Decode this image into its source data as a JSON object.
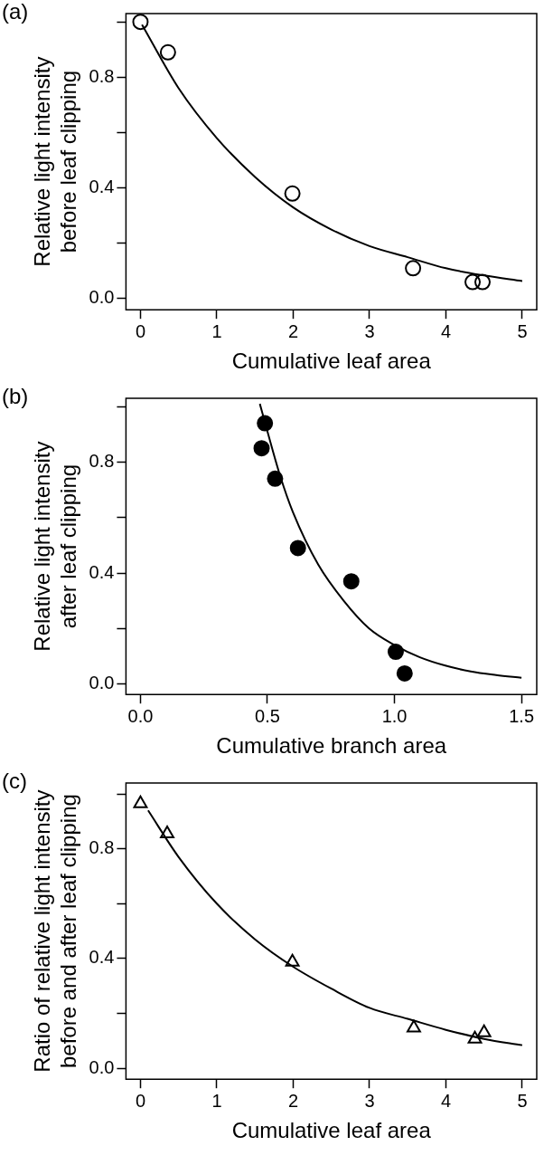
{
  "chart_data": [
    {
      "type": "scatter",
      "annotations": [
        "(a)"
      ],
      "xlabel": "Cumulative leaf area",
      "ylabel": "Relative light intensity\nbefore leaf clipping",
      "xlim": [
        -0.19,
        5.19
      ],
      "ylim": [
        -0.04,
        1.03
      ],
      "xticks": [
        0,
        1,
        2,
        3,
        4,
        5
      ],
      "yticks": [
        {
          "value": 0,
          "label": "0.0"
        },
        {
          "value": 0.2,
          "label": null
        },
        {
          "value": 0.4,
          "label": "0.4"
        },
        {
          "value": 0.6,
          "label": null
        },
        {
          "value": 0.8,
          "label": "0.8"
        },
        {
          "value": 1,
          "label": null
        }
      ],
      "series": [
        {
          "color": "#000000",
          "marker": "circle",
          "x": [
            0,
            0.36,
            1.99,
            3.57,
            4.35,
            4.48
          ],
          "values": [
            1.0,
            0.89,
            0.38,
            0.11,
            0.06,
            0.06
          ]
        },
        {
          "type": "line",
          "marker": "none",
          "color": "#000000",
          "x": [
            0.02,
            0.5,
            1,
            1.5,
            2,
            2.5,
            3,
            3.5,
            4,
            4.5,
            5
          ],
          "values": [
            0.99,
            0.76,
            0.58,
            0.44,
            0.33,
            0.25,
            0.19,
            0.15,
            0.11,
            0.084,
            0.064
          ]
        }
      ]
    },
    {
      "type": "scatter",
      "annotations": [
        "(b)"
      ],
      "xlabel": "Cumulative branch area",
      "ylabel": "Relative light intensity\nafter leaf clipping",
      "xlim": [
        -0.057,
        1.56
      ],
      "ylim": [
        -0.038,
        1.03
      ],
      "xticks": [
        {
          "value": 0,
          "label": "0.0"
        },
        {
          "value": 0.5,
          "label": "0.5"
        },
        {
          "value": 1,
          "label": "1.0"
        },
        {
          "value": 1.5,
          "label": "1.5"
        }
      ],
      "yticks": [
        {
          "value": 0,
          "label": "0.0"
        },
        {
          "value": 0.2,
          "label": null
        },
        {
          "value": 0.4,
          "label": "0.4"
        },
        {
          "value": 0.6,
          "label": null
        },
        {
          "value": 0.8,
          "label": "0.8"
        },
        {
          "value": 1,
          "label": null
        }
      ],
      "series": [
        {
          "color": "#000000",
          "marker": "circle",
          "x": [
            0.49,
            0.477,
            0.53,
            0.62,
            0.83,
            1.005,
            1.04
          ],
          "values": [
            0.94,
            0.85,
            0.74,
            0.49,
            0.37,
            0.116,
            0.038
          ]
        },
        {
          "type": "line",
          "marker": "none",
          "color": "#000000",
          "x": [
            0.47,
            0.5,
            0.55,
            0.6,
            0.7,
            0.8,
            0.9,
            1.0,
            1.1,
            1.2,
            1.3,
            1.4,
            1.5
          ],
          "values": [
            1.01,
            0.91,
            0.75,
            0.62,
            0.43,
            0.3,
            0.2,
            0.14,
            0.096,
            0.066,
            0.045,
            0.032,
            0.022
          ]
        }
      ]
    },
    {
      "type": "scatter",
      "annotations": [
        "(c)"
      ],
      "xlabel": "Cumulative leaf area",
      "ylabel": "Ratio of relative light intensity\nbefore and after leaf clipping",
      "xlim": [
        -0.19,
        5.19
      ],
      "ylim": [
        -0.04,
        1.04
      ],
      "xticks": [
        0,
        1,
        2,
        3,
        4,
        5
      ],
      "yticks": [
        {
          "value": 0,
          "label": "0.0"
        },
        {
          "value": 0.2,
          "label": null
        },
        {
          "value": 0.4,
          "label": "0.4"
        },
        {
          "value": 0.6,
          "label": null
        },
        {
          "value": 0.8,
          "label": "0.8"
        },
        {
          "value": 1,
          "label": null
        }
      ],
      "series": [
        {
          "color": "#000000",
          "marker": "triangle",
          "x": [
            0,
            0.35,
            1.99,
            3.58,
            4.38,
            4.5
          ],
          "values": [
            0.965,
            0.855,
            0.387,
            0.147,
            0.107,
            0.13
          ]
        },
        {
          "type": "line",
          "marker": "none",
          "color": "#000000",
          "x": [
            0.1,
            0.5,
            1,
            1.5,
            2,
            2.5,
            3,
            3.5,
            4,
            4.5,
            5
          ],
          "values": [
            0.94,
            0.77,
            0.6,
            0.47,
            0.37,
            0.29,
            0.22,
            0.18,
            0.14,
            0.107,
            0.084
          ]
        }
      ]
    }
  ]
}
